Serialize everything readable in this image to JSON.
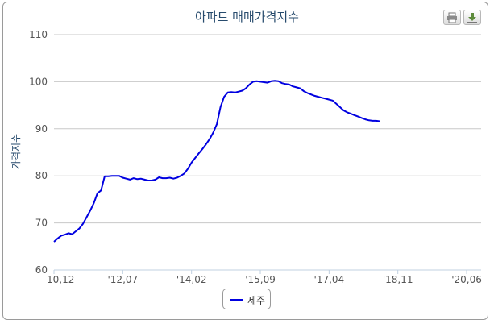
{
  "toolbar": {
    "print_icon": "print-icon",
    "download_icon": "download-icon"
  },
  "chart_data": {
    "type": "line",
    "title": "아파트 매매가격지수",
    "ylabel": "가격지수",
    "xlabel": "",
    "ylim": [
      60,
      110
    ],
    "yticks": [
      60,
      70,
      80,
      90,
      100,
      110
    ],
    "grid": true,
    "legend_position": "bottom-center",
    "color": "#0000e0",
    "xticks": [
      {
        "label": "10,12",
        "index": 0
      },
      {
        "label": "'12,07",
        "index": 19
      },
      {
        "label": "'14,02",
        "index": 38
      },
      {
        "label": "'15,09",
        "index": 57
      },
      {
        "label": "'17,04",
        "index": 76
      },
      {
        "label": "'18,11",
        "index": 95
      },
      {
        "label": "'20,06",
        "index": 114
      }
    ],
    "x_count": 119,
    "series": [
      {
        "name": "제주",
        "points": [
          [
            0,
            66.0
          ],
          [
            1,
            66.7
          ],
          [
            2,
            67.3
          ],
          [
            3,
            67.5
          ],
          [
            4,
            67.8
          ],
          [
            5,
            67.6
          ],
          [
            6,
            68.2
          ],
          [
            7,
            68.8
          ],
          [
            8,
            69.8
          ],
          [
            9,
            71.2
          ],
          [
            10,
            72.6
          ],
          [
            11,
            74.2
          ],
          [
            12,
            76.3
          ],
          [
            13,
            76.9
          ],
          [
            14,
            79.9
          ],
          [
            15,
            79.9
          ],
          [
            16,
            80.0
          ],
          [
            17,
            80.0
          ],
          [
            18,
            80.0
          ],
          [
            19,
            79.6
          ],
          [
            20,
            79.4
          ],
          [
            21,
            79.2
          ],
          [
            22,
            79.5
          ],
          [
            23,
            79.3
          ],
          [
            24,
            79.4
          ],
          [
            25,
            79.2
          ],
          [
            26,
            79.0
          ],
          [
            27,
            79.0
          ],
          [
            28,
            79.2
          ],
          [
            29,
            79.7
          ],
          [
            30,
            79.5
          ],
          [
            31,
            79.5
          ],
          [
            32,
            79.6
          ],
          [
            33,
            79.4
          ],
          [
            34,
            79.6
          ],
          [
            35,
            80.0
          ],
          [
            36,
            80.5
          ],
          [
            37,
            81.5
          ],
          [
            38,
            82.8
          ],
          [
            39,
            83.8
          ],
          [
            40,
            84.8
          ],
          [
            41,
            85.7
          ],
          [
            42,
            86.7
          ],
          [
            43,
            87.8
          ],
          [
            44,
            89.2
          ],
          [
            45,
            91.0
          ],
          [
            46,
            94.6
          ],
          [
            47,
            96.8
          ],
          [
            48,
            97.7
          ],
          [
            49,
            97.8
          ],
          [
            50,
            97.7
          ],
          [
            51,
            97.9
          ],
          [
            52,
            98.1
          ],
          [
            53,
            98.6
          ],
          [
            54,
            99.4
          ],
          [
            55,
            100.0
          ],
          [
            56,
            100.1
          ],
          [
            57,
            100.0
          ],
          [
            58,
            99.9
          ],
          [
            59,
            99.8
          ],
          [
            60,
            100.1
          ],
          [
            61,
            100.2
          ],
          [
            62,
            100.1
          ],
          [
            63,
            99.7
          ],
          [
            64,
            99.5
          ],
          [
            65,
            99.4
          ],
          [
            66,
            99.0
          ],
          [
            67,
            98.8
          ],
          [
            68,
            98.6
          ],
          [
            69,
            98.0
          ],
          [
            70,
            97.6
          ],
          [
            71,
            97.3
          ],
          [
            72,
            97.0
          ],
          [
            73,
            96.8
          ],
          [
            74,
            96.6
          ],
          [
            75,
            96.4
          ],
          [
            76,
            96.2
          ],
          [
            77,
            96.0
          ],
          [
            78,
            95.3
          ],
          [
            79,
            94.6
          ],
          [
            80,
            93.9
          ],
          [
            81,
            93.5
          ],
          [
            82,
            93.2
          ],
          [
            83,
            92.9
          ],
          [
            84,
            92.6
          ],
          [
            85,
            92.3
          ],
          [
            86,
            92.0
          ],
          [
            87,
            91.8
          ],
          [
            88,
            91.7
          ],
          [
            89,
            91.7
          ],
          [
            90,
            91.6
          ]
        ]
      }
    ]
  }
}
